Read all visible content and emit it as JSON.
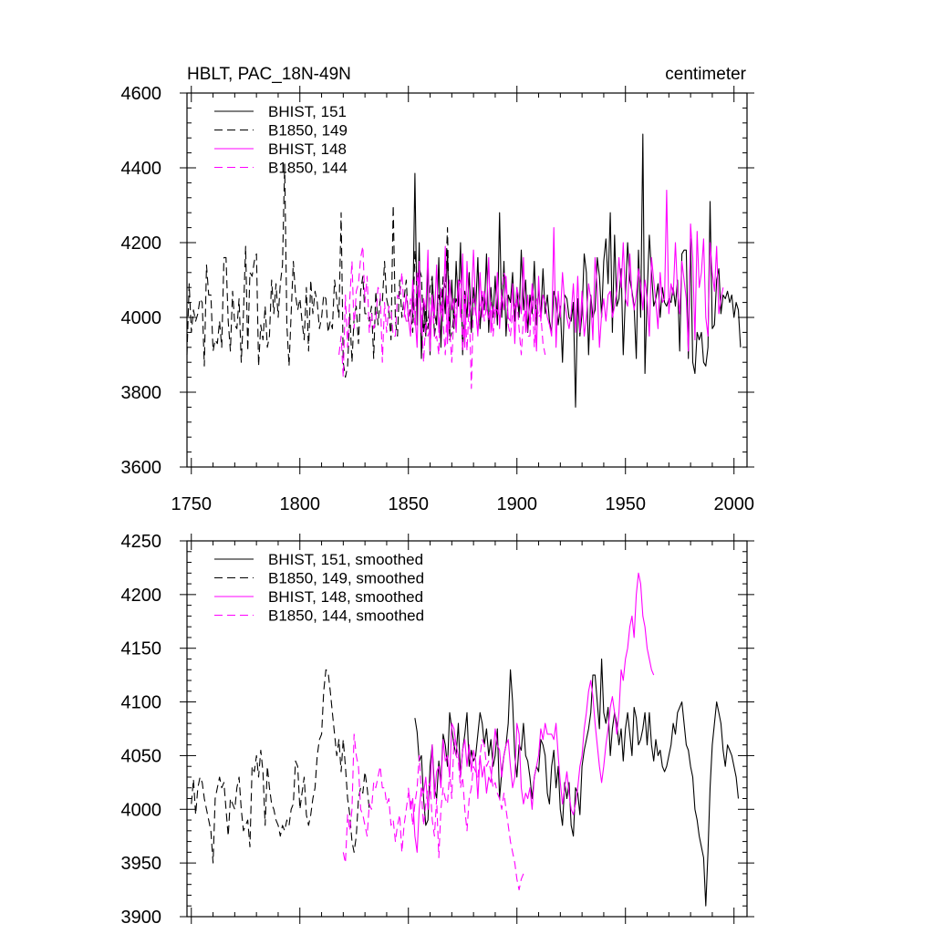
{
  "chart_data": [
    {
      "type": "line",
      "title_left": "HBLT, PAC_18N-49N",
      "title_right": "centimeter",
      "xlabel": "",
      "ylabel": "",
      "xlim": [
        1748,
        2006
      ],
      "ylim": [
        3600,
        4600
      ],
      "xticks": [
        1750,
        1800,
        1850,
        1900,
        1950,
        2000
      ],
      "yticks": [
        3600,
        3800,
        4000,
        4200,
        4400,
        4600
      ],
      "legend_position": "top-left",
      "series": [
        {
          "name": "BHIST, 151",
          "color": "#000000",
          "dash": "solid",
          "x_start": 1852,
          "values": [
            4000,
            4385,
            3980,
            4200,
            3890,
            4050,
            3950,
            4150,
            3900,
            4100,
            4010,
            3980,
            4160,
            3920,
            4080,
            4010,
            4180,
            3950,
            4100,
            3970,
            4150,
            4030,
            4200,
            3900,
            4070,
            4000,
            4120,
            3960,
            4080,
            4020,
            4160,
            3970,
            4060,
            4020,
            4170,
            3960,
            4080,
            4000,
            4110,
            3980,
            4280,
            4000,
            4150,
            3950,
            4060,
            4040,
            4120,
            3990,
            4080,
            4000,
            4180,
            4020,
            4100,
            3960,
            4060,
            4010,
            4150,
            3980,
            4080,
            4000,
            4130,
            4010,
            4060,
            3990,
            3960,
            4070,
            4050,
            3980,
            4030,
            3880,
            4060,
            4050,
            4000,
            3990,
            4040,
            3760,
            4050,
            3950,
            4010,
            4170,
            4120,
            3900,
            4060,
            4000,
            4020,
            4160,
            4110,
            4000,
            4150,
            4210,
            4090,
            4280,
            3960,
            4220,
            4030,
            4050,
            4130,
            3900,
            4060,
            4200,
            4100,
            4070,
            4030,
            3890,
            4180,
            4000,
            4490,
            3850,
            4060,
            4220,
            4120,
            4030,
            4050,
            4090,
            4000,
            4080,
            4040,
            4030,
            4050,
            4040,
            4080,
            4030,
            4100,
            3910,
            4170,
            4180,
            4180,
            3890,
            4210,
            3880,
            3850,
            3960,
            3940,
            3960,
            3880,
            3870,
            3920,
            4310,
            3970,
            3980,
            4100,
            4130,
            4010,
            4060,
            4050,
            4070,
            4040,
            4060,
            4000,
            4040,
            4020,
            3920
          ]
        },
        {
          "name": "B1850, 149",
          "color": "#000000",
          "dash": "dashed",
          "x_start": 1748,
          "values": [
            3900,
            4090,
            3960,
            4020,
            3990,
            4010,
            4050,
            4040,
            3870,
            4140,
            4060,
            4060,
            3910,
            3940,
            3930,
            3990,
            3920,
            4160,
            4160,
            3990,
            3910,
            4070,
            3980,
            3970,
            4050,
            3880,
            4010,
            4190,
            3910,
            4120,
            4110,
            4150,
            4170,
            3870,
            3980,
            3940,
            4030,
            3920,
            3950,
            4100,
            4010,
            4090,
            4000,
            4090,
            4140,
            4410,
            3980,
            3870,
            4010,
            4150,
            4060,
            4020,
            4050,
            3990,
            3940,
            4080,
            3910,
            4100,
            4010,
            4070,
            4040,
            3970,
            4000,
            4060,
            4050,
            3960,
            3990,
            3970,
            4100,
            4050,
            4000,
            4280,
            3880,
            3840,
            3870,
            4010,
            3880,
            4000,
            4030,
            3930,
            4070,
            4110,
            4010,
            4010,
            3990,
            4030,
            3890,
            4070,
            3980,
            4050,
            4040,
            4150,
            4050,
            4020,
            3940,
            4300,
            3990,
            3950,
            4100,
            4000,
            4050,
            4100,
            3990,
            4020,
            3960,
            4180,
            4100,
            4130,
            4110,
            3960,
            4020,
            3970,
            4080,
            4110,
            3950,
            4000,
            4060,
            4010,
            4110,
            4080,
            4240,
            3940,
            3960,
            4010,
            4050,
            4030
          ]
        },
        {
          "name": "BHIST, 148",
          "color": "#ff00ff",
          "dash": "solid",
          "x_start": 1848,
          "values": [
            4000,
            4060,
            4000,
            3950,
            4100,
            4010,
            3920,
            4150,
            3960,
            4050,
            4020,
            4180,
            3910,
            4060,
            4000,
            4140,
            3960,
            4030,
            4000,
            4190,
            3930,
            4100,
            4020,
            4050,
            3960,
            4100,
            4000,
            4170,
            3920,
            4150,
            4010,
            4040,
            4180,
            4030,
            3950,
            4120,
            4000,
            4070,
            4020,
            4160,
            3960,
            4030,
            4000,
            4120,
            3970,
            4060,
            4020,
            4110,
            4000,
            3990,
            4090,
            3930,
            4080,
            4050,
            4010,
            4160,
            3960,
            4060,
            3980,
            4090,
            4040,
            3910,
            4110,
            3990,
            4060,
            4040,
            4000,
            3980,
            3950,
            4240,
            3920,
            4070,
            4000,
            4120,
            4040,
            4000,
            3970,
            4010,
            4090,
            3960,
            4110,
            3960,
            4070,
            3950,
            4000,
            4090,
            4050,
            3940,
            4160,
            4080,
            3920,
            4010,
            4050,
            3990,
            4060,
            4070,
            4000,
            4030,
            4070,
            4160,
            4080,
            4200,
            4050,
            4030,
            4170,
            4060,
            4020,
            4060,
            4130,
            4090,
            4020,
            4100,
            4050,
            3950,
            4160,
            4100,
            4040,
            3970,
            4120,
            4040,
            4050,
            4340,
            4010,
            4090,
            4060,
            4200,
            4070,
            4010,
            4150,
            4100,
            4050,
            3910,
            4250,
            4160,
            3940,
            4230,
            4080,
            4120,
            4210,
            4000,
            3950,
            4200,
            4120,
            4070,
            4190,
            4010,
            4050,
            4080
          ]
        },
        {
          "name": "B1850, 144",
          "color": "#ff00ff",
          "dash": "dashed",
          "x_start": 1818,
          "values": [
            3900,
            3950,
            3840,
            4060,
            3920,
            4050,
            4150,
            3970,
            4070,
            4090,
            4160,
            4190,
            4040,
            4110,
            3960,
            4010,
            3970,
            3990,
            4080,
            4070,
            3880,
            4040,
            3960,
            4030,
            4020,
            3950,
            3950,
            4060,
            4050,
            4120,
            4020,
            3990,
            3990,
            4050,
            4020,
            3980,
            4120,
            4060,
            4020,
            3880,
            3990,
            3950,
            3970,
            4060,
            3940,
            3950,
            3900,
            4080,
            3990,
            3900,
            4060,
            3970,
            3880,
            4010,
            4000,
            4090,
            4100,
            3910,
            4060,
            3910,
            4040,
            3810,
            4050,
            4010,
            3960,
            4020,
            4070,
            3990,
            4030,
            3990,
            4040,
            3950,
            4020,
            4020,
            3990,
            4070,
            4120,
            4100,
            3980,
            3950,
            4010,
            4030,
            4050,
            3970,
            3900,
            4000,
            4020,
            3950,
            3950,
            4080,
            3920,
            4050,
            4000,
            4010,
            3930,
            3900
          ]
        }
      ]
    },
    {
      "type": "line",
      "title": "",
      "xlabel": "",
      "ylabel": "",
      "xlim": [
        1748,
        2006
      ],
      "ylim": [
        3900,
        4250
      ],
      "yticks": [
        3900,
        3950,
        4000,
        4050,
        4100,
        4150,
        4200,
        4250
      ],
      "legend_position": "top-left",
      "series": [
        {
          "name": "BHIST, 151, smoothed",
          "color": "#000000",
          "dash": "solid",
          "x_start": 1853,
          "values": [
            4085,
            4072,
            4045,
            4050,
            4010,
            3985,
            3990,
            4040,
            4060,
            4020,
            4010,
            4045,
            4025,
            4070,
            4060,
            4040,
            4090,
            4075,
            4060,
            4050,
            4080,
            4030,
            4055,
            4070,
            4090,
            4040,
            4055,
            4045,
            4050,
            4070,
            4090,
            4080,
            4060,
            4075,
            4050,
            4065,
            4040,
            4050,
            4075,
            4010,
            4035,
            4050,
            4060,
            4080,
            4130,
            4100,
            4050,
            4030,
            4060,
            4055,
            4080,
            4050,
            4045,
            4030,
            4010,
            4030,
            4040,
            4035,
            4065,
            4060,
            4050,
            4015,
            4005,
            4040,
            4055,
            4020,
            4040,
            4000,
            3985,
            4025,
            4010,
            4025,
            3985,
            3975,
            4020,
            4015,
            3995,
            4040,
            4055,
            4065,
            4075,
            4090,
            4125,
            4125,
            4100,
            4075,
            4140,
            4090,
            4080,
            4095,
            4050,
            4075,
            4090,
            4080,
            4060,
            4075,
            4045,
            4075,
            4090,
            4070,
            4050,
            4095,
            4085,
            4060,
            4065,
            4075,
            4090,
            4060,
            4090,
            4060,
            4045,
            4065,
            4050,
            4055,
            4040,
            4035,
            4040,
            4050,
            4060,
            4080,
            4070,
            4090,
            4095,
            4100,
            4080,
            4060,
            4055,
            4040,
            4030,
            4000,
            3990,
            3975,
            3965,
            3955,
            3910,
            3960,
            4020,
            4060,
            4080,
            4100,
            4090,
            4080,
            4055,
            4040,
            4060,
            4055,
            4050,
            4040,
            4030,
            4010
          ]
        },
        {
          "name": "B1850, 149, smoothed",
          "color": "#000000",
          "dash": "dashed",
          "x_start": 1750,
          "values": [
            4005,
            4028,
            3995,
            4020,
            4030,
            4025,
            4010,
            4000,
            3990,
            3980,
            3950,
            4010,
            4020,
            4030,
            4020,
            4025,
            4000,
            3975,
            4010,
            4005,
            4000,
            4020,
            4030,
            4000,
            3980,
            3985,
            3990,
            3965,
            4040,
            4035,
            4050,
            4030,
            4055,
            4035,
            3985,
            4040,
            4020,
            4005,
            4000,
            3990,
            3985,
            3975,
            3985,
            3980,
            3990,
            3985,
            4000,
            4005,
            4045,
            4040,
            4000,
            4015,
            4030,
            3995,
            3985,
            3995,
            4010,
            4020,
            4050,
            4065,
            4070,
            4110,
            4130,
            4128,
            4110,
            4090,
            4070,
            4050,
            4065,
            4035,
            4065,
            4040,
            4010,
            3995,
            3970,
            3960,
            3975,
            4010,
            4020,
            4015,
            4035,
            4020,
            4000
          ]
        },
        {
          "name": "BHIST, 148, smoothed",
          "color": "#ff00ff",
          "dash": "solid",
          "x_start": 1850,
          "values": [
            4020,
            4000,
            4010,
            3975,
            3960,
            4000,
            4020,
            4015,
            4030,
            4000,
            4020,
            4060,
            4010,
            4035,
            4040,
            4020,
            4065,
            4045,
            4050,
            4030,
            4080,
            4075,
            4060,
            4050,
            4030,
            4055,
            4065,
            4040,
            4060,
            4035,
            4055,
            4045,
            4010,
            4050,
            4030,
            4040,
            4015,
            4030,
            4025,
            4050,
            4075,
            4060,
            4055,
            4030,
            4050,
            4060,
            4065,
            4040,
            4020,
            4030,
            4080,
            4070,
            4020,
            4005,
            4015,
            4010,
            4020,
            4000,
            4030,
            4040,
            4050,
            4075,
            4065,
            4080,
            4070,
            4070,
            4070,
            4065,
            4080,
            4050,
            4025,
            4005,
            4020,
            4035,
            4015,
            4000,
            3995,
            4005,
            4020,
            4040,
            4050,
            4075,
            4090,
            4110,
            4120,
            4105,
            4080,
            4060,
            4040,
            4025,
            4040,
            4060,
            4075,
            4095,
            4105,
            4090,
            4070,
            4090,
            4130,
            4120,
            4140,
            4150,
            4170,
            4180,
            4160,
            4200,
            4220,
            4210,
            4180,
            4170,
            4150,
            4140,
            4130,
            4125
          ]
        },
        {
          "name": "B1850, 144, smoothed",
          "color": "#ff00ff",
          "dash": "dashed",
          "x_start": 1820,
          "values": [
            3960,
            3950,
            3995,
            3980,
            4000,
            4070,
            4050,
            4040,
            4000,
            3995,
            3985,
            3975,
            4005,
            4000,
            4025,
            4020,
            4030,
            4040,
            4020,
            4020,
            4005,
            4010,
            3985,
            3990,
            3970,
            3985,
            3995,
            3960,
            3985,
            4000,
            4015,
            4010,
            3985,
            4005,
            4020,
            4050,
            4015,
            3985,
            4005,
            4020,
            4025,
            3990,
            3975,
            4010,
            3955,
            4000,
            4020,
            4010,
            4005,
            4035,
            4010,
            4065,
            4050,
            4045,
            4020,
            4030,
            4000,
            3980,
            4010,
            4020,
            4040,
            4035,
            4030,
            4050,
            4065,
            4060,
            4040,
            4045,
            4035,
            4020,
            4025,
            4015,
            4010,
            4000,
            4015,
            4000,
            3985,
            3970,
            3960,
            3950,
            3935,
            3925,
            3935,
            3940
          ]
        }
      ]
    }
  ]
}
